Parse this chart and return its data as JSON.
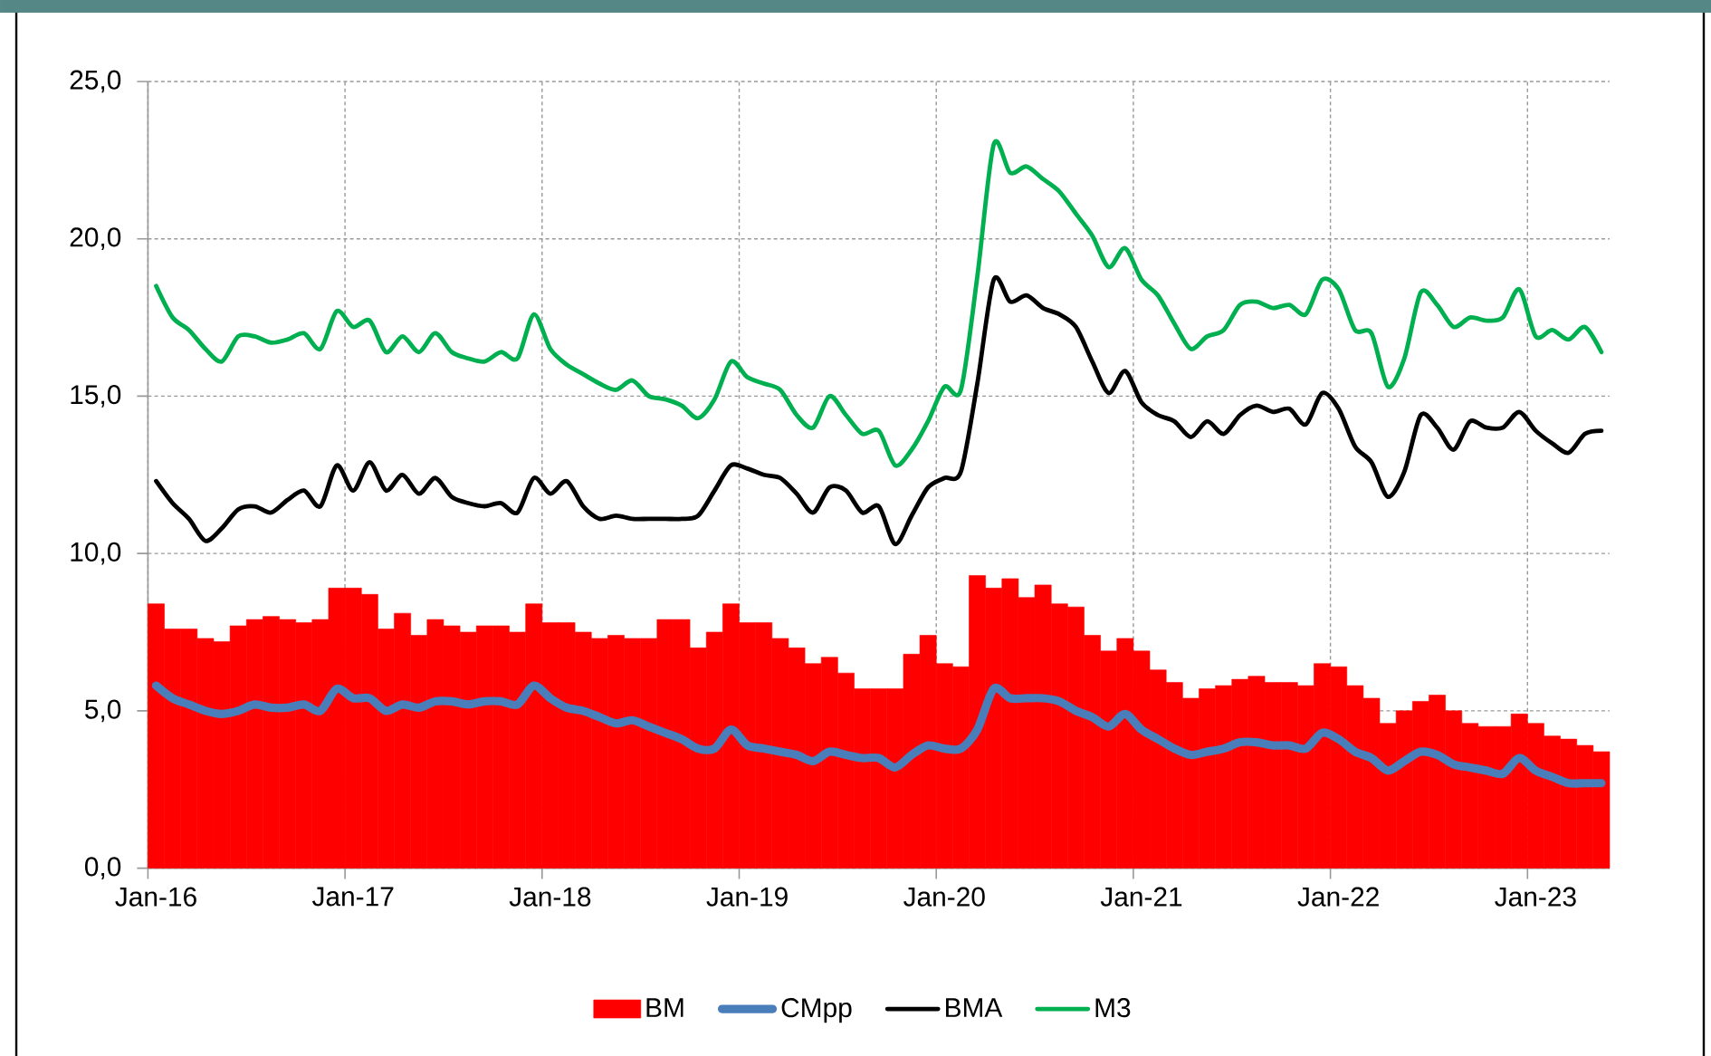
{
  "chart_data": {
    "type": "bar",
    "categories": [
      "Jan-16",
      null,
      null,
      null,
      null,
      null,
      null,
      null,
      null,
      null,
      null,
      null,
      "Jan-17",
      null,
      null,
      null,
      null,
      null,
      null,
      null,
      null,
      null,
      null,
      null,
      "Jan-18",
      null,
      null,
      null,
      null,
      null,
      null,
      null,
      null,
      null,
      null,
      null,
      "Jan-19",
      null,
      null,
      null,
      null,
      null,
      null,
      null,
      null,
      null,
      null,
      null,
      "Jan-20",
      null,
      null,
      null,
      null,
      null,
      null,
      null,
      null,
      null,
      null,
      null,
      "Jan-21",
      null,
      null,
      null,
      null,
      null,
      null,
      null,
      null,
      null,
      null,
      null,
      "Jan-22",
      null,
      null,
      null,
      null,
      null,
      null,
      null,
      null,
      null,
      null,
      null,
      "Jan-23",
      null,
      null,
      null,
      null
    ],
    "series": [
      {
        "name": "BM",
        "color": "#ff0000",
        "values": [
          8.4,
          7.6,
          7.6,
          7.3,
          7.2,
          7.7,
          7.9,
          8.0,
          7.9,
          7.8,
          7.9,
          8.9,
          8.9,
          8.7,
          7.6,
          8.1,
          7.4,
          7.9,
          7.7,
          7.5,
          7.7,
          7.7,
          7.5,
          8.4,
          7.8,
          7.8,
          7.5,
          7.3,
          7.4,
          7.3,
          7.3,
          7.9,
          7.9,
          7.0,
          7.5,
          8.4,
          7.8,
          7.8,
          7.3,
          7.0,
          6.5,
          6.7,
          6.2,
          5.7,
          5.7,
          5.7,
          6.8,
          7.4,
          6.5,
          6.4,
          9.3,
          8.9,
          9.2,
          8.6,
          9.0,
          8.4,
          8.3,
          7.4,
          6.9,
          7.3,
          6.9,
          6.3,
          5.9,
          5.4,
          5.7,
          5.8,
          6.0,
          6.1,
          5.9,
          5.9,
          5.8,
          6.5,
          6.4,
          5.8,
          5.4,
          4.6,
          5.0,
          5.3,
          5.5,
          5.0,
          4.6,
          4.5,
          4.5,
          4.9,
          4.6,
          4.2,
          4.1,
          3.9,
          3.7
        ]
      },
      {
        "name": "CMpp",
        "type": "line",
        "color": "#4a7ebb",
        "values": [
          5.8,
          5.4,
          5.2,
          5.0,
          4.9,
          5.0,
          5.2,
          5.1,
          5.1,
          5.2,
          5.0,
          5.7,
          5.4,
          5.4,
          5.0,
          5.2,
          5.1,
          5.3,
          5.3,
          5.2,
          5.3,
          5.3,
          5.2,
          5.8,
          5.4,
          5.1,
          5.0,
          4.8,
          4.6,
          4.7,
          4.5,
          4.3,
          4.1,
          3.8,
          3.8,
          4.4,
          3.9,
          3.8,
          3.7,
          3.6,
          3.4,
          3.7,
          3.6,
          3.5,
          3.5,
          3.2,
          3.6,
          3.9,
          3.8,
          3.8,
          4.4,
          5.7,
          5.4,
          5.4,
          5.4,
          5.3,
          5.0,
          4.8,
          4.5,
          4.9,
          4.4,
          4.1,
          3.8,
          3.6,
          3.7,
          3.8,
          4.0,
          4.0,
          3.9,
          3.9,
          3.8,
          4.3,
          4.1,
          3.7,
          3.5,
          3.1,
          3.4,
          3.7,
          3.6,
          3.3,
          3.2,
          3.1,
          3.0,
          3.5,
          3.1,
          2.9,
          2.7,
          2.7,
          2.7
        ]
      },
      {
        "name": "BMA",
        "type": "line",
        "color": "#000000",
        "values": [
          12.3,
          11.6,
          11.1,
          10.4,
          10.8,
          11.4,
          11.5,
          11.3,
          11.7,
          12.0,
          11.5,
          12.8,
          12.0,
          12.9,
          12.0,
          12.5,
          11.9,
          12.4,
          11.8,
          11.6,
          11.5,
          11.6,
          11.3,
          12.4,
          11.9,
          12.3,
          11.5,
          11.1,
          11.2,
          11.1,
          11.1,
          11.1,
          11.1,
          11.2,
          12.0,
          12.8,
          12.7,
          12.5,
          12.4,
          11.9,
          11.3,
          12.1,
          12.0,
          11.3,
          11.5,
          10.3,
          11.2,
          12.1,
          12.4,
          12.6,
          15.4,
          18.7,
          18.0,
          18.2,
          17.8,
          17.6,
          17.2,
          16.1,
          15.1,
          15.8,
          14.8,
          14.4,
          14.2,
          13.7,
          14.2,
          13.8,
          14.4,
          14.7,
          14.5,
          14.6,
          14.1,
          15.1,
          14.6,
          13.4,
          12.9,
          11.8,
          12.6,
          14.4,
          14.0,
          13.3,
          14.2,
          14.0,
          14.0,
          14.5,
          13.9,
          13.5,
          13.2,
          13.8,
          13.9
        ]
      },
      {
        "name": "M3",
        "type": "line",
        "color": "#00b050",
        "values": [
          18.5,
          17.5,
          17.1,
          16.5,
          16.1,
          16.9,
          16.9,
          16.7,
          16.8,
          17.0,
          16.5,
          17.7,
          17.2,
          17.4,
          16.4,
          16.9,
          16.4,
          17.0,
          16.4,
          16.2,
          16.1,
          16.4,
          16.2,
          17.6,
          16.5,
          16.0,
          15.7,
          15.4,
          15.2,
          15.5,
          15.0,
          14.9,
          14.7,
          14.3,
          14.9,
          16.1,
          15.6,
          15.4,
          15.2,
          14.4,
          14.0,
          15.0,
          14.4,
          13.8,
          13.9,
          12.8,
          13.3,
          14.2,
          15.3,
          15.2,
          18.8,
          23.0,
          22.1,
          22.3,
          21.9,
          21.5,
          20.8,
          20.1,
          19.1,
          19.7,
          18.7,
          18.2,
          17.3,
          16.5,
          16.9,
          17.1,
          17.9,
          18.0,
          17.8,
          17.9,
          17.6,
          18.7,
          18.4,
          17.1,
          17.0,
          15.3,
          16.2,
          18.3,
          17.9,
          17.2,
          17.5,
          17.4,
          17.5,
          18.4,
          16.9,
          17.1,
          16.8,
          17.2,
          16.4
        ]
      }
    ],
    "ylim": [
      0,
      25
    ],
    "yticks": [
      {
        "value": 0,
        "label": "0,0"
      },
      {
        "value": 5,
        "label": "5,0"
      },
      {
        "value": 10,
        "label": "10,0"
      },
      {
        "value": 15,
        "label": "15,0"
      },
      {
        "value": 20,
        "label": "20,0"
      },
      {
        "value": 25,
        "label": "25,0"
      }
    ],
    "grid": true,
    "legend": "bottom",
    "marker": "none"
  }
}
